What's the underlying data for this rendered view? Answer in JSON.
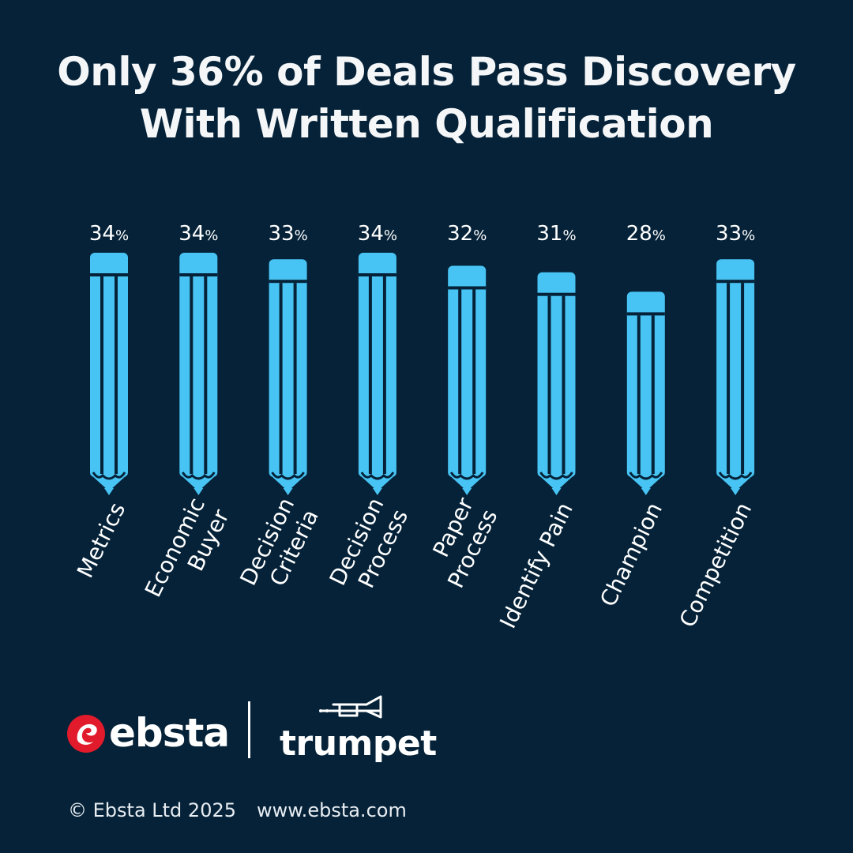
{
  "title": {
    "line1": "Only 36% of Deals Pass Discovery",
    "line2": "With Written Qualification"
  },
  "chart_data": {
    "type": "bar",
    "categories": [
      "Metrics",
      "Economic Buyer",
      "Decision Criteria",
      "Decision Process",
      "Paper Process",
      "Identify Pain",
      "Champion",
      "Competition"
    ],
    "category_lines": [
      [
        "Metrics"
      ],
      [
        "Economic",
        "Buyer"
      ],
      [
        "Decision",
        "Criteria"
      ],
      [
        "Decision",
        "Process"
      ],
      [
        "Paper",
        "Process"
      ],
      [
        "Identify Pain"
      ],
      [
        "Champion"
      ],
      [
        "Competition"
      ]
    ],
    "values": [
      34,
      34,
      33,
      34,
      32,
      31,
      28,
      33
    ],
    "value_suffix": "%",
    "bar_style": "pencil",
    "bar_color": "#48c4f4",
    "grid": false,
    "legend": "none"
  },
  "brand": {
    "ebsta": "ebsta",
    "trumpet": "trumpet",
    "ebsta_color": "#e11b2b"
  },
  "footer": {
    "copyright": "© Ebsta Ltd 2025",
    "website": "www.ebsta.com"
  }
}
